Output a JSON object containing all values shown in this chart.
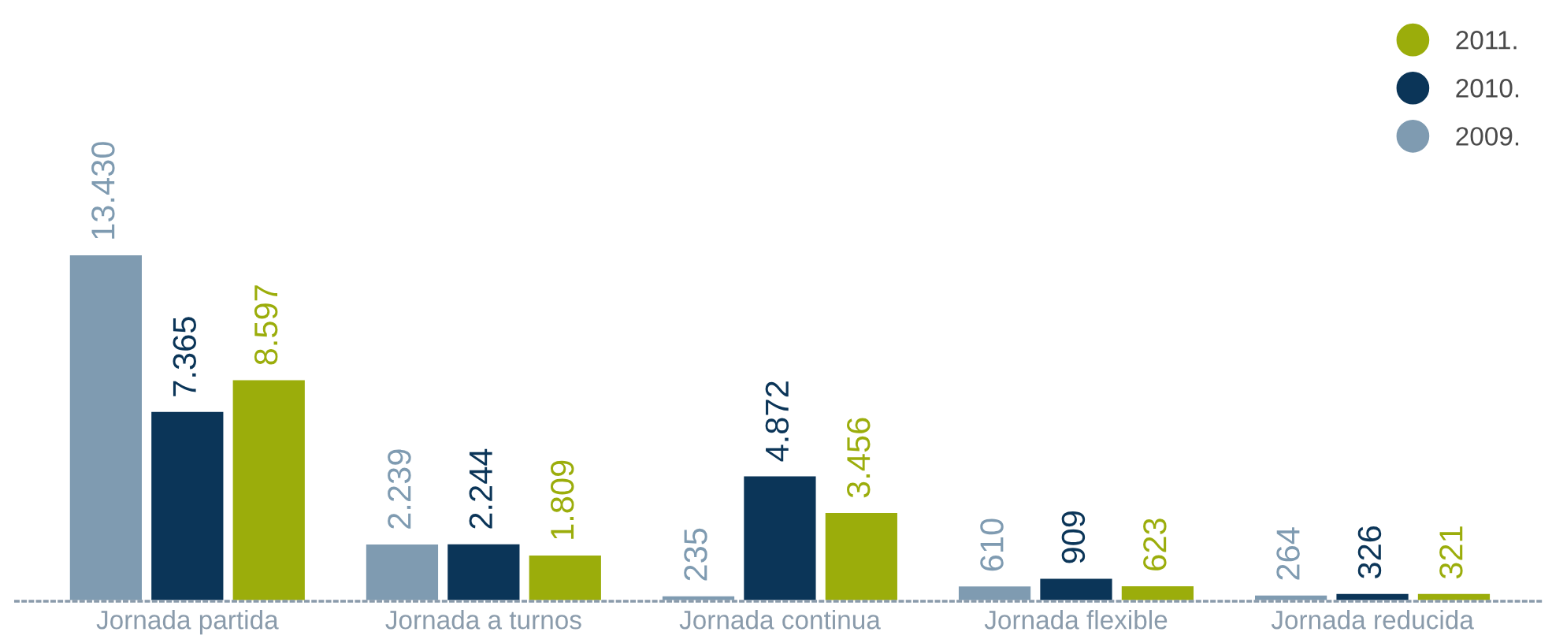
{
  "chart_data": {
    "type": "bar",
    "categories": [
      "Jornada partida",
      "Jornada a turnos",
      "Jornada continua",
      "Jornada flexible",
      "Jornada reducida"
    ],
    "series": [
      {
        "name": "2009.",
        "color": "#7f9bb1",
        "values": [
          13430,
          2239,
          235,
          610,
          264
        ],
        "value_labels": [
          "13.430",
          "2.239",
          "235",
          "610",
          "264"
        ]
      },
      {
        "name": "2010.",
        "color": "#0b3558",
        "values": [
          7365,
          2244,
          4872,
          909,
          326
        ],
        "value_labels": [
          "7.365",
          "2.244",
          "4.872",
          "909",
          "326"
        ]
      },
      {
        "name": "2011.",
        "color": "#9bad0b",
        "values": [
          8597,
          1809,
          3456,
          623,
          321
        ],
        "value_labels": [
          "8.597",
          "1.809",
          "3.456",
          "623",
          "321"
        ]
      }
    ],
    "legend": "top right",
    "grid": false
  }
}
